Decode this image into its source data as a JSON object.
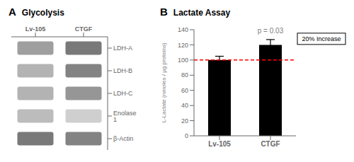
{
  "chart_data": [
    {
      "type": "heatmap",
      "title": "Glycolysis",
      "annotations": [
        {
          "text": "A"
        }
      ],
      "x": [
        "Lv-105",
        "CTGF"
      ],
      "y": [
        "LDH-A",
        "LDH-B",
        "LDH-C",
        "Enolase 1",
        "β-Actin"
      ],
      "cells": [
        [
          0.5,
          0.7
        ],
        [
          0.4,
          0.65
        ],
        [
          0.4,
          0.55
        ],
        [
          0.35,
          0.25
        ],
        [
          0.7,
          0.65
        ]
      ],
      "grid": false
    },
    {
      "type": "bar",
      "title": "Lactate Assay",
      "annotations": [
        {
          "text": "B"
        },
        {
          "text": "p = 0.03",
          "x": "CTGF",
          "y": 130
        },
        {
          "text": "20% Increase",
          "y": 128
        }
      ],
      "categories": [
        "Lv-105",
        "CTGF"
      ],
      "values": [
        100,
        120
      ],
      "errors": [
        5,
        7
      ],
      "color": "#000000",
      "ylabel": "L-Lactate (nmoles / µg proteins)",
      "ylim": [
        0,
        140
      ],
      "yticks": [
        0,
        20,
        40,
        60,
        80,
        100,
        120,
        140
      ],
      "reference_lines": [
        {
          "y": 100,
          "color": "#ff0000",
          "line_style": "dashed"
        }
      ],
      "grid": false
    }
  ]
}
